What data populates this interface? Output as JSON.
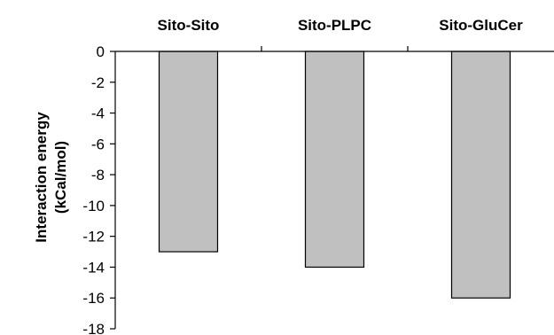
{
  "chart_data": {
    "type": "bar",
    "categories": [
      "Sito-Sito",
      "Sito-PLPC",
      "Sito-GluCer"
    ],
    "values": [
      -13,
      -14,
      -16
    ],
    "title": "",
    "xlabel": "",
    "ylabel_line1": "Interaction energy",
    "ylabel_line2": "(kCal/mol)",
    "ylim": [
      -18,
      0
    ],
    "yticks": [
      "0",
      "-2",
      "-4",
      "-6",
      "-8",
      "-10",
      "-12",
      "-14",
      "-16",
      "-18"
    ],
    "x_axis_position": "top",
    "grid": false,
    "legend": "none",
    "bar_color": "#c0c0c0",
    "bar_edge_color": "#000000"
  }
}
